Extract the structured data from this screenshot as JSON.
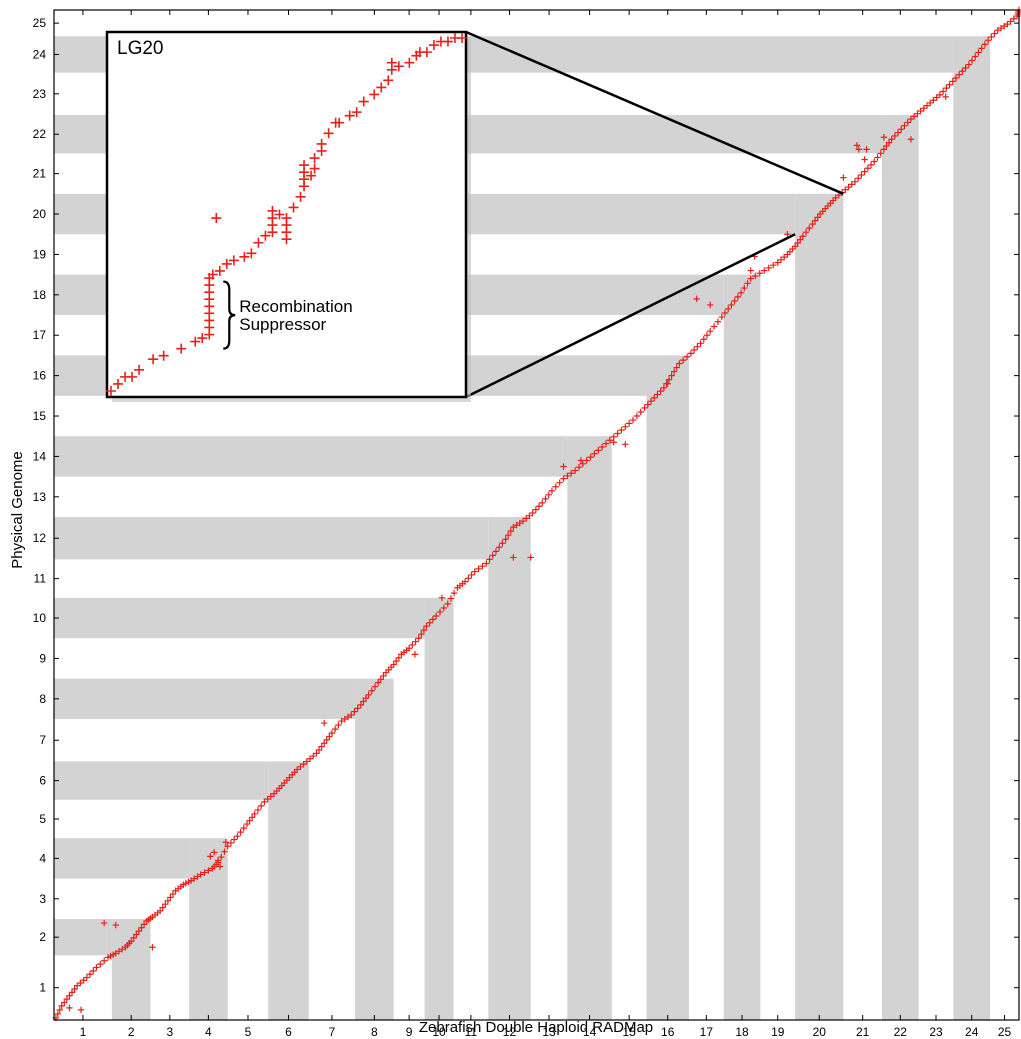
{
  "chart_data": {
    "type": "scatter",
    "xlabel": "Zebrafish Double Haploid RADMap",
    "ylabel": "Physical Genome",
    "x_tick_labels": [
      "1",
      "2",
      "3",
      "4",
      "5",
      "6",
      "7",
      "8",
      "9",
      "10",
      "11",
      "12",
      "13",
      "14",
      "15",
      "16",
      "17",
      "18",
      "19",
      "20",
      "21",
      "22",
      "23",
      "24",
      "25"
    ],
    "y_tick_labels": [
      "1",
      "2",
      "3",
      "4",
      "5",
      "6",
      "7",
      "8",
      "9",
      "10",
      "11",
      "12",
      "13",
      "14",
      "15",
      "16",
      "17",
      "18",
      "19",
      "20",
      "21",
      "22",
      "23",
      "24",
      "25"
    ],
    "xlim": [
      0,
      25
    ],
    "ylim": [
      0,
      25
    ],
    "x_bounds": [
      0,
      1.5,
      2.5,
      3.5,
      4.5,
      5.55,
      6.6,
      7.8,
      8.8,
      9.6,
      10.35,
      11.25,
      12.35,
      13.3,
      14.45,
      15.35,
      16.45,
      17.35,
      18.3,
      19.2,
      20.45,
      21.45,
      22.4,
      23.3,
      24.25,
      25.0
    ],
    "y_bounds": [
      0,
      1.6,
      2.5,
      3.5,
      4.5,
      5.45,
      6.4,
      7.45,
      8.45,
      9.45,
      10.45,
      11.4,
      12.45,
      13.45,
      14.45,
      15.45,
      16.45,
      17.45,
      18.45,
      19.45,
      20.45,
      21.45,
      22.4,
      23.45,
      24.35,
      25.0
    ],
    "shaded_x_bands": [
      "2",
      "4",
      "6",
      "8",
      "10",
      "12",
      "14",
      "16",
      "18",
      "20",
      "22",
      "24"
    ],
    "shaded_y_bands": [
      "2",
      "4",
      "6",
      "8",
      "10",
      "12",
      "14",
      "16",
      "18",
      "20",
      "22",
      "24"
    ],
    "colors": {
      "marker": "#e8201a",
      "band": "#d3d3d3",
      "inset_border": "#000000"
    },
    "marker": "plus",
    "main_points": [
      [
        0.05,
        0.05
      ],
      [
        0.2,
        0.35
      ],
      [
        0.4,
        0.6
      ],
      [
        0.6,
        0.85
      ],
      [
        0.85,
        1.05
      ],
      [
        1.1,
        1.3
      ],
      [
        1.4,
        1.55
      ],
      [
        1.6,
        1.65
      ],
      [
        1.85,
        1.8
      ],
      [
        2.0,
        1.95
      ],
      [
        2.2,
        2.2
      ],
      [
        2.4,
        2.45
      ],
      [
        2.55,
        2.55
      ],
      [
        2.75,
        2.7
      ],
      [
        2.95,
        2.95
      ],
      [
        3.15,
        3.2
      ],
      [
        3.35,
        3.35
      ],
      [
        3.55,
        3.45
      ],
      [
        3.8,
        3.6
      ],
      [
        4.1,
        3.75
      ],
      [
        4.25,
        3.9
      ],
      [
        4.5,
        4.3
      ],
      [
        4.75,
        4.55
      ],
      [
        5.0,
        4.85
      ],
      [
        5.2,
        5.1
      ],
      [
        5.45,
        5.4
      ],
      [
        5.7,
        5.6
      ],
      [
        5.9,
        5.8
      ],
      [
        6.1,
        6.0
      ],
      [
        6.3,
        6.2
      ],
      [
        6.55,
        6.4
      ],
      [
        6.8,
        6.6
      ],
      [
        7.0,
        6.85
      ],
      [
        7.2,
        7.1
      ],
      [
        7.45,
        7.4
      ],
      [
        7.7,
        7.55
      ],
      [
        7.95,
        7.8
      ],
      [
        8.15,
        8.05
      ],
      [
        8.4,
        8.35
      ],
      [
        8.6,
        8.6
      ],
      [
        8.8,
        8.8
      ],
      [
        9.0,
        9.05
      ],
      [
        9.2,
        9.2
      ],
      [
        9.45,
        9.45
      ],
      [
        9.65,
        9.75
      ],
      [
        9.9,
        10.0
      ],
      [
        10.2,
        10.3
      ],
      [
        10.45,
        10.7
      ],
      [
        10.65,
        10.85
      ],
      [
        10.9,
        11.1
      ],
      [
        11.2,
        11.3
      ],
      [
        11.45,
        11.6
      ],
      [
        11.7,
        11.9
      ],
      [
        11.9,
        12.2
      ],
      [
        12.15,
        12.35
      ],
      [
        12.4,
        12.55
      ],
      [
        12.65,
        12.8
      ],
      [
        12.9,
        13.1
      ],
      [
        13.2,
        13.4
      ],
      [
        13.5,
        13.6
      ],
      [
        13.8,
        13.85
      ],
      [
        14.1,
        14.1
      ],
      [
        14.4,
        14.35
      ],
      [
        14.7,
        14.6
      ],
      [
        15.0,
        14.85
      ],
      [
        15.3,
        15.15
      ],
      [
        15.55,
        15.4
      ],
      [
        15.8,
        15.65
      ],
      [
        16.0,
        15.95
      ],
      [
        16.2,
        16.25
      ],
      [
        16.5,
        16.5
      ],
      [
        16.75,
        16.75
      ],
      [
        17.0,
        17.05
      ],
      [
        17.3,
        17.4
      ],
      [
        17.55,
        17.7
      ],
      [
        17.8,
        18.0
      ],
      [
        18.05,
        18.35
      ],
      [
        18.4,
        18.55
      ],
      [
        18.75,
        18.75
      ],
      [
        19.0,
        18.95
      ],
      [
        19.2,
        19.15
      ],
      [
        19.4,
        19.4
      ],
      [
        19.65,
        19.7
      ],
      [
        19.85,
        19.95
      ],
      [
        20.05,
        20.15
      ],
      [
        20.25,
        20.35
      ],
      [
        20.5,
        20.55
      ],
      [
        20.75,
        20.75
      ],
      [
        21.0,
        21.0
      ],
      [
        21.25,
        21.25
      ],
      [
        21.5,
        21.55
      ],
      [
        21.7,
        21.8
      ],
      [
        21.95,
        22.05
      ],
      [
        22.2,
        22.3
      ],
      [
        22.45,
        22.5
      ],
      [
        22.7,
        22.7
      ],
      [
        22.95,
        22.9
      ],
      [
        23.2,
        23.15
      ],
      [
        23.45,
        23.4
      ],
      [
        23.7,
        23.65
      ],
      [
        23.95,
        23.95
      ],
      [
        24.2,
        24.25
      ],
      [
        24.45,
        24.5
      ],
      [
        24.7,
        24.65
      ],
      [
        24.95,
        24.85
      ],
      [
        25.0,
        25.0
      ],
      [
        0.4,
        0.3
      ],
      [
        0.7,
        0.25
      ],
      [
        1.3,
        2.4
      ],
      [
        1.6,
        2.35
      ],
      [
        2.55,
        1.8
      ],
      [
        4.05,
        4.05
      ],
      [
        4.15,
        4.15
      ],
      [
        4.3,
        3.8
      ],
      [
        4.25,
        3.95
      ],
      [
        4.45,
        4.4
      ],
      [
        7.0,
        7.35
      ],
      [
        9.35,
        9.05
      ],
      [
        10.05,
        10.45
      ],
      [
        11.9,
        11.45
      ],
      [
        12.35,
        11.45
      ],
      [
        13.2,
        13.7
      ],
      [
        13.65,
        13.85
      ],
      [
        14.5,
        14.3
      ],
      [
        14.8,
        14.25
      ],
      [
        15.9,
        15.75
      ],
      [
        16.65,
        17.85
      ],
      [
        17.0,
        17.7
      ],
      [
        18.05,
        18.55
      ],
      [
        18.15,
        18.9
      ],
      [
        19.0,
        19.45
      ],
      [
        20.45,
        20.85
      ],
      [
        20.8,
        21.65
      ],
      [
        20.85,
        21.55
      ],
      [
        21.0,
        21.3
      ],
      [
        21.05,
        21.55
      ],
      [
        21.5,
        21.85
      ],
      [
        22.2,
        21.8
      ],
      [
        23.1,
        22.85
      ]
    ],
    "inset": {
      "label": "LG20",
      "annotation": [
        "Recombination",
        "Suppressor"
      ],
      "source_box_x": [
        19.2,
        20.45
      ],
      "source_box_y": [
        19.45,
        20.45
      ],
      "points": [
        [
          0.0,
          0.0
        ],
        [
          0.02,
          0.02
        ],
        [
          0.04,
          0.04
        ],
        [
          0.06,
          0.04
        ],
        [
          0.08,
          0.06
        ],
        [
          0.12,
          0.09
        ],
        [
          0.15,
          0.1
        ],
        [
          0.2,
          0.12
        ],
        [
          0.24,
          0.14
        ],
        [
          0.26,
          0.15
        ],
        [
          0.28,
          0.16
        ],
        [
          0.28,
          0.18
        ],
        [
          0.28,
          0.2
        ],
        [
          0.28,
          0.22
        ],
        [
          0.28,
          0.24
        ],
        [
          0.28,
          0.26
        ],
        [
          0.28,
          0.28
        ],
        [
          0.28,
          0.3
        ],
        [
          0.28,
          0.32
        ],
        [
          0.29,
          0.33
        ],
        [
          0.31,
          0.34
        ],
        [
          0.33,
          0.36
        ],
        [
          0.35,
          0.37
        ],
        [
          0.38,
          0.38
        ],
        [
          0.4,
          0.39
        ],
        [
          0.42,
          0.42
        ],
        [
          0.44,
          0.44
        ],
        [
          0.46,
          0.45
        ],
        [
          0.46,
          0.47
        ],
        [
          0.46,
          0.49
        ],
        [
          0.46,
          0.51
        ],
        [
          0.48,
          0.5
        ],
        [
          0.5,
          0.47
        ],
        [
          0.5,
          0.45
        ],
        [
          0.5,
          0.43
        ],
        [
          0.5,
          0.49
        ],
        [
          0.52,
          0.52
        ],
        [
          0.54,
          0.55
        ],
        [
          0.55,
          0.58
        ],
        [
          0.55,
          0.6
        ],
        [
          0.55,
          0.62
        ],
        [
          0.55,
          0.64
        ],
        [
          0.57,
          0.61
        ],
        [
          0.58,
          0.63
        ],
        [
          0.58,
          0.66
        ],
        [
          0.6,
          0.68
        ],
        [
          0.6,
          0.7
        ],
        [
          0.62,
          0.73
        ],
        [
          0.64,
          0.76
        ],
        [
          0.65,
          0.76
        ],
        [
          0.68,
          0.78
        ],
        [
          0.7,
          0.79
        ],
        [
          0.72,
          0.82
        ],
        [
          0.75,
          0.84
        ],
        [
          0.77,
          0.86
        ],
        [
          0.79,
          0.88
        ],
        [
          0.8,
          0.91
        ],
        [
          0.8,
          0.93
        ],
        [
          0.82,
          0.92
        ],
        [
          0.85,
          0.93
        ],
        [
          0.87,
          0.95
        ],
        [
          0.88,
          0.96
        ],
        [
          0.9,
          0.96
        ],
        [
          0.92,
          0.98
        ],
        [
          0.94,
          0.99
        ],
        [
          0.96,
          0.99
        ],
        [
          0.98,
          1.0
        ],
        [
          1.0,
          1.0
        ],
        [
          0.3,
          0.49
        ]
      ]
    }
  }
}
